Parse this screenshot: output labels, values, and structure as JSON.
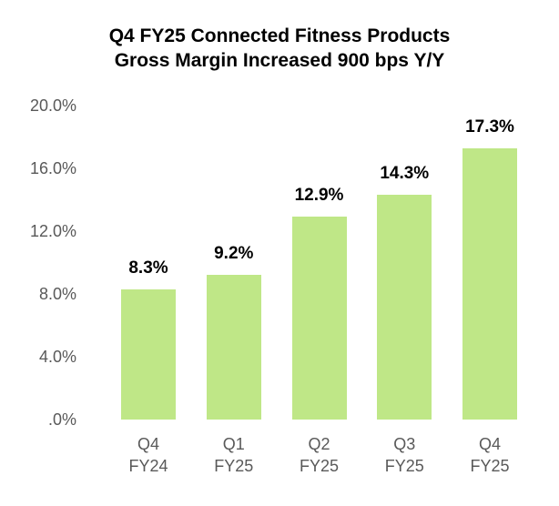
{
  "title": {
    "line1": "Q4 FY25 Connected Fitness Products",
    "line2": "Gross Margin Increased 900 bps Y/Y"
  },
  "y_axis": {
    "ticks": [
      "20.0%",
      "16.0%",
      "12.0%",
      "8.0%",
      "4.0%",
      ".0%"
    ]
  },
  "bars": [
    {
      "q": "Q4",
      "fy": "FY24",
      "label": "8.3%",
      "value": 8.3
    },
    {
      "q": "Q1",
      "fy": "FY25",
      "label": "9.2%",
      "value": 9.2
    },
    {
      "q": "Q2",
      "fy": "FY25",
      "label": "12.9%",
      "value": 12.9
    },
    {
      "q": "Q3",
      "fy": "FY25",
      "label": "14.3%",
      "value": 14.3
    },
    {
      "q": "Q4",
      "fy": "FY25",
      "label": "17.3%",
      "value": 17.3
    }
  ],
  "colors": {
    "bar": "#bfe787",
    "axis_text": "#595959",
    "title": "#000000"
  },
  "chart_data": {
    "type": "bar",
    "title": "Q4 FY25 Connected Fitness Products Gross Margin Increased 900 bps Y/Y",
    "categories": [
      "Q4 FY24",
      "Q1 FY25",
      "Q2 FY25",
      "Q3 FY25",
      "Q4 FY25"
    ],
    "values": [
      8.3,
      9.2,
      12.9,
      14.3,
      17.3
    ],
    "data_labels": [
      "8.3%",
      "9.2%",
      "12.9%",
      "14.3%",
      "17.3%"
    ],
    "xlabel": "",
    "ylabel": "",
    "ylim": [
      0,
      20
    ],
    "yticks": [
      0,
      4,
      8,
      12,
      16,
      20
    ],
    "ytick_labels": [
      ".0%",
      "4.0%",
      "8.0%",
      "12.0%",
      "16.0%",
      "20.0%"
    ],
    "grid": false,
    "legend": null,
    "bar_color": "#bfe787"
  }
}
